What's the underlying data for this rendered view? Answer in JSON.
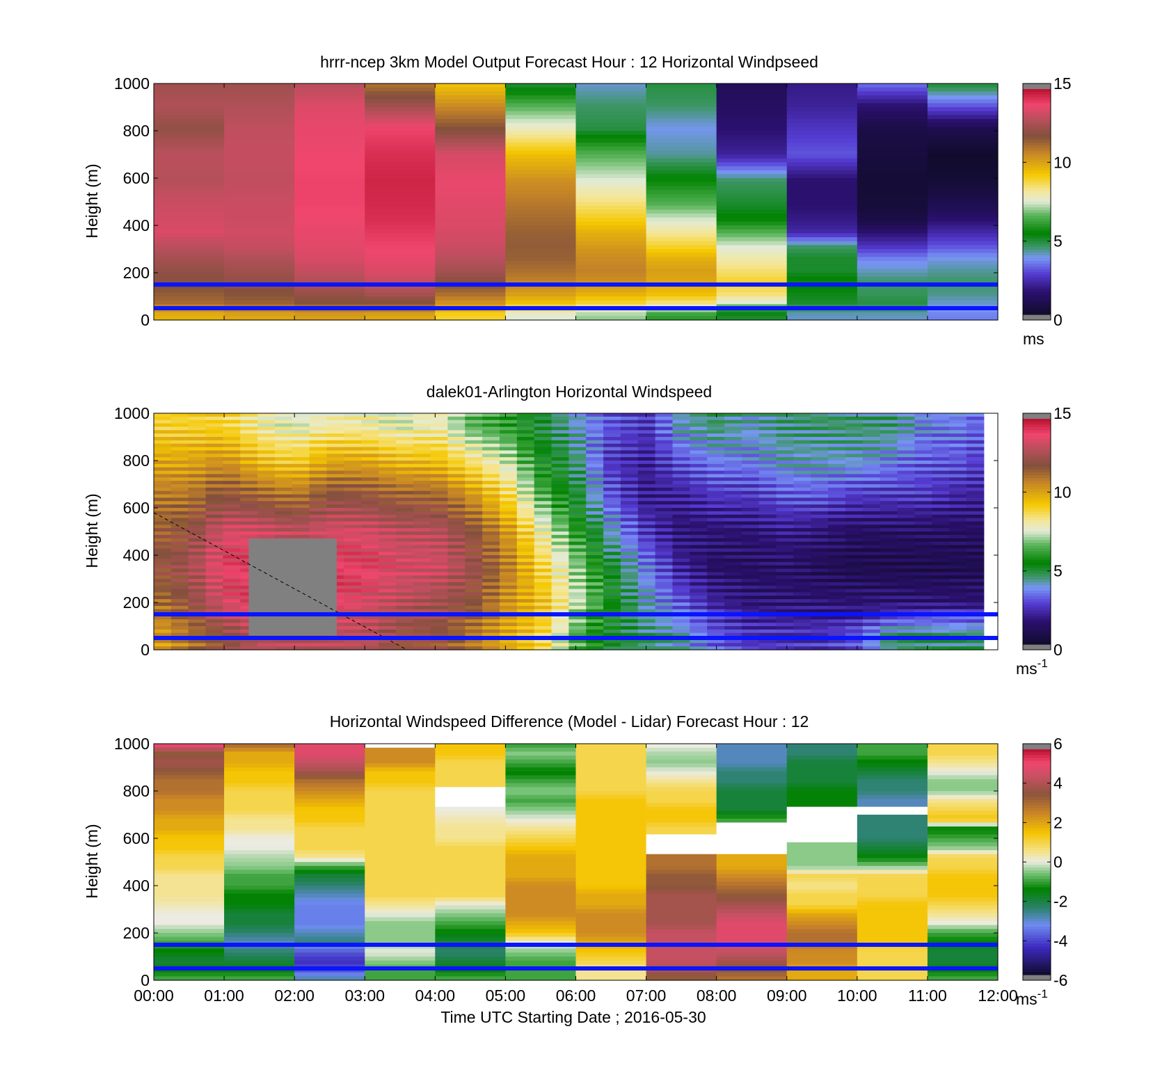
{
  "chart_data": [
    {
      "type": "heatmap",
      "title": "hrrr-ncep 3km Model Output   Forecast Hour : 12 Horizontal Windpseed",
      "ylabel": "Height (m)",
      "xlabel": "",
      "ylim": [
        0,
        1000
      ],
      "yticks": [
        "0",
        "200",
        "400",
        "600",
        "800",
        "1000"
      ],
      "colorbar": {
        "min": 0,
        "max": 15,
        "ticks": [
          "0",
          "5",
          "10",
          "15"
        ],
        "unit": "ms",
        "scale": "speed"
      },
      "blue_lines_m": [
        150,
        50
      ],
      "x_hours": [
        0,
        12
      ],
      "columns": 12,
      "heights": [
        990,
        905,
        810,
        700,
        590,
        490,
        420,
        370,
        310,
        260,
        210,
        160,
        110,
        75,
        45,
        20
      ],
      "values": [
        [
          12.5,
          12.8,
          12.2,
          13.0,
          12.9,
          13.3,
          13.4,
          13.6,
          13.0,
          12.6,
          12.2,
          12.0,
          11.6,
          11.3,
          10.5,
          9.8
        ],
        [
          12.5,
          12.8,
          13.1,
          13.2,
          13.1,
          13.3,
          13.3,
          13.4,
          13.2,
          12.8,
          12.5,
          12.2,
          11.8,
          11.5,
          10.8,
          10.0
        ],
        [
          13.0,
          13.6,
          13.8,
          13.9,
          14.0,
          14.0,
          13.9,
          13.8,
          13.7,
          13.5,
          13.2,
          12.8,
          12.3,
          11.8,
          11.0,
          10.2
        ],
        [
          11.2,
          12.5,
          14.0,
          14.4,
          14.6,
          14.5,
          14.4,
          14.2,
          14.0,
          13.8,
          13.6,
          13.2,
          12.6,
          11.8,
          11.0,
          10.0
        ],
        [
          9.5,
          10.6,
          11.8,
          13.5,
          13.8,
          13.7,
          13.6,
          13.5,
          13.3,
          13.0,
          12.6,
          12.0,
          11.2,
          10.5,
          9.8,
          9.0
        ],
        [
          5.0,
          6.5,
          7.8,
          9.5,
          10.5,
          11.0,
          11.3,
          11.5,
          11.6,
          11.5,
          11.2,
          10.8,
          10.2,
          9.5,
          8.5,
          7.5
        ],
        [
          4.0,
          4.5,
          4.8,
          6.5,
          7.5,
          8.5,
          9.2,
          9.8,
          10.3,
          10.6,
          10.8,
          10.5,
          9.8,
          9.0,
          8.0,
          7.0
        ],
        [
          4.8,
          4.5,
          3.8,
          4.2,
          5.5,
          6.5,
          7.5,
          8.2,
          9.0,
          9.8,
          10.2,
          10.0,
          9.5,
          8.5,
          7.2,
          6.0
        ],
        [
          1.0,
          1.2,
          1.5,
          2.0,
          4.5,
          5.0,
          5.5,
          6.5,
          7.5,
          8.0,
          8.5,
          9.0,
          8.5,
          7.5,
          6.0,
          5.0
        ],
        [
          1.8,
          2.0,
          2.5,
          3.0,
          1.5,
          1.5,
          1.8,
          2.2,
          4.5,
          5.0,
          5.0,
          5.5,
          5.2,
          5.0,
          4.5,
          4.0
        ],
        [
          3.2,
          1.5,
          0.6,
          0.4,
          0.2,
          0.3,
          0.6,
          1.5,
          2.5,
          3.5,
          4.0,
          4.5,
          4.6,
          4.8,
          4.5,
          4.0
        ],
        [
          4.8,
          3.0,
          0.8,
          0.0,
          0.2,
          0.8,
          1.5,
          2.2,
          3.0,
          3.8,
          4.2,
          4.5,
          4.3,
          4.0,
          3.8,
          3.5
        ]
      ]
    },
    {
      "type": "heatmap",
      "title": "dalek01-Arlington  Horizontal Windspeed",
      "ylabel": "Height (m)",
      "xlabel": "",
      "ylim": [
        0,
        1000
      ],
      "yticks": [
        "0",
        "200",
        "400",
        "600",
        "800",
        "1000"
      ],
      "colorbar": {
        "min": 0,
        "max": 15,
        "ticks": [
          "0",
          "5",
          "10",
          "15"
        ],
        "unit": "ms",
        "unit_sup": "-1",
        "scale": "speed"
      },
      "blue_lines_m": [
        150,
        50
      ],
      "x_hours": [
        0,
        11.8
      ],
      "dashed_line": {
        "from": [
          0.0,
          580
        ],
        "to": [
          3.6,
          0
        ]
      },
      "gap_rect": {
        "x": [
          1.35,
          2.6
        ],
        "y": [
          60,
          470
        ]
      },
      "time_profile": [
        {
          "t": 0.0,
          "h": [
            9,
            10,
            11,
            11.5,
            12,
            11,
            10
          ]
        },
        {
          "t": 0.5,
          "h": [
            9,
            10,
            11,
            12,
            12.5,
            12,
            11
          ]
        },
        {
          "t": 1.0,
          "h": [
            9,
            10.5,
            12,
            13.5,
            14,
            13.5,
            12
          ]
        },
        {
          "t": 1.5,
          "h": [
            8,
            9.5,
            11.5,
            13.5,
            14,
            14,
            13
          ]
        },
        {
          "t": 2.0,
          "h": [
            7.5,
            9,
            11,
            13,
            13.5,
            13.5,
            13
          ]
        },
        {
          "t": 2.5,
          "h": [
            8,
            10,
            12,
            13.5,
            14,
            14,
            13
          ]
        },
        {
          "t": 3.0,
          "h": [
            8,
            10,
            12,
            13.5,
            14,
            13.5,
            13
          ]
        },
        {
          "t": 3.5,
          "h": [
            7.5,
            9.5,
            11.5,
            13,
            13.5,
            13,
            12
          ]
        },
        {
          "t": 4.0,
          "h": [
            8,
            9.5,
            11.5,
            13,
            13.5,
            12.5,
            12
          ]
        },
        {
          "t": 4.5,
          "h": [
            6.5,
            8.5,
            10.5,
            12,
            12.5,
            12,
            11
          ]
        },
        {
          "t": 5.0,
          "h": [
            6,
            7.5,
            9,
            10.5,
            11,
            10.5,
            10
          ]
        },
        {
          "t": 5.5,
          "h": [
            5,
            5.5,
            6.5,
            8,
            9,
            9.5,
            9
          ]
        },
        {
          "t": 6.0,
          "h": [
            4,
            4.5,
            5,
            6,
            7,
            7.5,
            6.5
          ]
        },
        {
          "t": 6.5,
          "h": [
            3,
            2.5,
            3,
            4,
            5,
            5.5,
            5
          ]
        },
        {
          "t": 7.0,
          "h": [
            2.5,
            2,
            1.8,
            2.5,
            3.5,
            4,
            4.5
          ]
        },
        {
          "t": 7.5,
          "h": [
            4,
            3,
            2,
            1.5,
            2,
            3,
            4
          ]
        },
        {
          "t": 8.0,
          "h": [
            4.5,
            3.5,
            2.5,
            1.5,
            1.2,
            2,
            3
          ]
        },
        {
          "t": 8.5,
          "h": [
            4,
            3.5,
            2.5,
            1.5,
            1.2,
            1.5,
            2.5
          ]
        },
        {
          "t": 9.0,
          "h": [
            4.5,
            4,
            3,
            1.8,
            1.3,
            1.5,
            2.5
          ]
        },
        {
          "t": 9.5,
          "h": [
            4.5,
            4,
            3,
            1.5,
            1.0,
            1.5,
            2.5
          ]
        },
        {
          "t": 10.0,
          "h": [
            4.5,
            4,
            2.5,
            1.2,
            0.8,
            1.5,
            3
          ]
        },
        {
          "t": 10.5,
          "h": [
            4.5,
            3.5,
            2.5,
            1.2,
            0.8,
            1.5,
            4.5
          ]
        },
        {
          "t": 11.0,
          "h": [
            3.5,
            3,
            2.5,
            1.2,
            0.8,
            1.5,
            4.5
          ]
        },
        {
          "t": 11.5,
          "h": [
            3.5,
            3,
            2,
            1.2,
            0.8,
            1.5,
            4.5
          ]
        },
        {
          "t": 11.8,
          "h": [
            3,
            2.5,
            2,
            1.2,
            0.8,
            1.5,
            4.5
          ]
        }
      ],
      "profile_heights": [
        950,
        800,
        650,
        500,
        350,
        200,
        60
      ]
    },
    {
      "type": "heatmap",
      "title": "Horizontal Windspeed Difference (Model - Lidar) Forecast Hour : 12",
      "ylabel": "Height (m)",
      "xlabel": "Time UTC  Starting Date ; 2016-05-30",
      "ylim": [
        0,
        1000
      ],
      "yticks": [
        "0",
        "200",
        "400",
        "600",
        "800",
        "1000"
      ],
      "xticks": [
        "00:00",
        "01:00",
        "02:00",
        "03:00",
        "04:00",
        "05:00",
        "06:00",
        "07:00",
        "08:00",
        "09:00",
        "10:00",
        "11:00",
        "12:00"
      ],
      "colorbar": {
        "min": -6,
        "max": 6,
        "ticks": [
          "-6",
          "-4",
          "-2",
          "0",
          "2",
          "4",
          "6"
        ],
        "unit": "ms",
        "unit_sup": "-1",
        "scale": "diff"
      },
      "blue_lines_m": [
        150,
        50
      ],
      "columns": 12,
      "heights": [
        990,
        960,
        920,
        880,
        840,
        800,
        760,
        720,
        680,
        640,
        600,
        560,
        520,
        480,
        440,
        400,
        360,
        320,
        280,
        240,
        200,
        160,
        120,
        80,
        40,
        10
      ],
      "values": [
        [
          5,
          3.5,
          4,
          3.5,
          3,
          3,
          2.5,
          2.5,
          2,
          2,
          1.5,
          1.5,
          1,
          1,
          0.5,
          0.5,
          0.5,
          0.3,
          0,
          0,
          -0.5,
          -1,
          -1.5,
          -2,
          -1.5,
          -1
        ],
        [
          3,
          2,
          2,
          1.5,
          1.5,
          1,
          1,
          1,
          0.5,
          0.5,
          0,
          0,
          -0.3,
          -0.5,
          -1,
          -1,
          -1.5,
          -1.5,
          -2,
          -2,
          -2.5,
          -3,
          -2.5,
          -2,
          -1.5,
          -1
        ],
        [
          5,
          5,
          4.5,
          4,
          3,
          2.5,
          2,
          1.5,
          1.5,
          1,
          1,
          1,
          0.5,
          -1,
          -2,
          -2.5,
          -3,
          -3.5,
          -3.5,
          -3.5,
          -3,
          -2.5,
          -4,
          -4.5,
          -4,
          -3
        ],
        [
          null,
          2.5,
          2.5,
          1.5,
          1.5,
          1,
          1,
          1,
          1,
          1,
          1,
          1,
          1,
          1,
          1,
          1,
          1,
          0.5,
          0,
          -0.5,
          -0.5,
          -0.5,
          0,
          -0.5,
          -1,
          -1
        ],
        [
          1.5,
          1.5,
          1,
          1,
          1,
          null,
          null,
          0,
          0.3,
          0.5,
          0.5,
          1,
          1,
          1,
          1,
          1,
          1,
          0,
          -0.5,
          -1,
          -1.5,
          -2,
          -2.5,
          -2,
          -1.5,
          -1
        ],
        [
          -1,
          -0.5,
          -1,
          -1.5,
          -1,
          -0.5,
          -1,
          -0.5,
          0,
          0.5,
          1,
          1.5,
          2,
          2,
          2,
          2.5,
          2.5,
          2.5,
          2.5,
          2,
          1.5,
          0,
          -0.5,
          -1,
          -1,
          -1
        ],
        [
          1,
          1,
          1,
          1,
          1,
          1,
          1.5,
          1.5,
          1.5,
          1.5,
          1.5,
          1.5,
          1.5,
          1.5,
          1.5,
          1.5,
          2,
          2,
          2.5,
          2.5,
          2.5,
          2,
          1.5,
          1,
          0.5,
          0.5
        ],
        [
          0,
          -0.3,
          -0.5,
          0,
          0.5,
          1,
          1,
          1.5,
          1.5,
          1,
          null,
          null,
          3,
          3,
          3.5,
          3.5,
          4,
          4,
          4,
          4,
          4.5,
          4.5,
          4.5,
          4.5,
          4,
          3.5
        ],
        [
          -3,
          -3,
          -3,
          -2.5,
          -2.5,
          -2,
          -2,
          -2,
          -1,
          null,
          null,
          null,
          2,
          2,
          2.5,
          3,
          3.5,
          4,
          4.5,
          5,
          5,
          5,
          4.5,
          4,
          3.5,
          3
        ],
        [
          -2.5,
          -2.5,
          -2,
          -2,
          -2,
          -1.5,
          -1.5,
          null,
          null,
          null,
          null,
          -0.5,
          -0.5,
          -0.5,
          1,
          0.5,
          1,
          1,
          2,
          2.5,
          3,
          3,
          2.5,
          2.5,
          2,
          2
        ],
        [
          -1,
          -1,
          -1.5,
          -2,
          -2.5,
          -2.5,
          -3,
          null,
          -2.5,
          -2.5,
          -2.5,
          -2,
          -1.5,
          -0.5,
          1,
          1,
          1,
          1.5,
          1.5,
          1.5,
          1.5,
          1.5,
          1,
          1,
          1,
          1
        ],
        [
          1,
          1,
          0.5,
          0,
          -0.5,
          -0.5,
          0.5,
          1,
          1.5,
          -1.5,
          -1,
          -0.5,
          1,
          1,
          1.5,
          1.5,
          1.5,
          1,
          0.5,
          0,
          -1,
          -1.5,
          -2,
          -2,
          -1.5,
          -1
        ]
      ]
    }
  ]
}
